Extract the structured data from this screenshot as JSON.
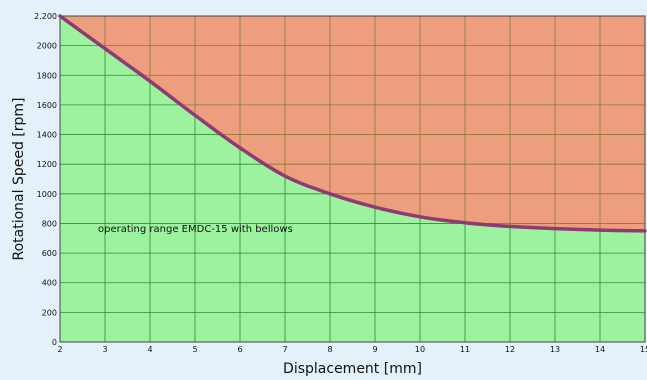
{
  "chart_data": {
    "type": "area",
    "xlabel": "Displacement [mm]",
    "ylabel": "Rotational Speed [rpm]",
    "xlim": [
      2,
      15
    ],
    "ylim": [
      0,
      2200
    ],
    "x_ticks": [
      2,
      3,
      4,
      5,
      6,
      7,
      8,
      9,
      10,
      11,
      12,
      13,
      14,
      15
    ],
    "y_ticks": [
      0,
      200,
      400,
      600,
      800,
      1000,
      1200,
      1400,
      1600,
      1800,
      2000,
      2200
    ],
    "y_tick_labels": [
      "0",
      "200",
      "400",
      "600",
      "800",
      "1000",
      "1200",
      "1400",
      "1600",
      "1800",
      "2000",
      "2.200"
    ],
    "grid": true,
    "annotation": "operating range EMDC-15 with bellows",
    "series": [
      {
        "x": [
          2,
          3,
          4,
          5,
          6,
          7,
          8,
          9,
          10,
          11,
          12,
          13,
          14,
          15
        ],
        "values": [
          2200,
          1980,
          1760,
          1530,
          1310,
          1120,
          1000,
          910,
          845,
          805,
          780,
          765,
          755,
          750
        ]
      }
    ],
    "colors": {
      "below_fill": "#9cf29f",
      "above_fill": "#ec9e7e",
      "curve": "#8e3a73",
      "grid_below": "#2e8f2e",
      "grid_above": "#8a7a33",
      "background": "#e4f1f9"
    }
  }
}
